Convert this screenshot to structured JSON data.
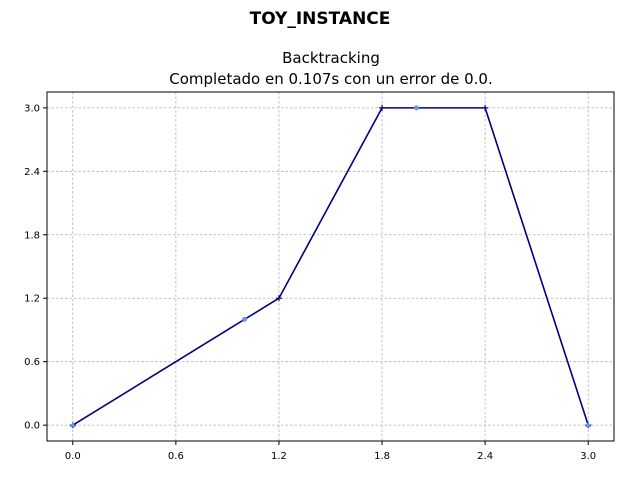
{
  "suptitle": "TOY_INSTANCE",
  "title_line1": "Backtracking",
  "title_line2": "Completado en 0.107s con un error de 0.0.",
  "chart_data": {
    "type": "line",
    "xlim": [
      -0.15,
      3.15
    ],
    "ylim": [
      -0.15,
      3.15
    ],
    "xticks": [
      0.0,
      0.6,
      1.2,
      1.8,
      2.4,
      3.0
    ],
    "yticks": [
      0.0,
      0.6,
      1.2,
      1.8,
      2.4,
      3.0
    ],
    "xtick_labels": [
      "0.0",
      "0.6",
      "1.2",
      "1.8",
      "2.4",
      "3.0"
    ],
    "ytick_labels": [
      "0.0",
      "0.6",
      "1.2",
      "1.8",
      "2.4",
      "3.0"
    ],
    "grid": true,
    "series": [
      {
        "color": "#000080",
        "marker": "plus",
        "x": [
          0.0,
          1.2,
          1.8,
          2.4,
          3.0
        ],
        "y": [
          0.0,
          1.2,
          3.0,
          3.0,
          0.0
        ]
      }
    ],
    "points": [
      {
        "color": "#6495ed",
        "marker": "triangle",
        "x": [
          0.0,
          3.0
        ],
        "y": [
          0.0,
          0.0
        ]
      },
      {
        "color": "#6495ed",
        "marker": "circle",
        "x": [
          1.0,
          2.0
        ],
        "y": [
          1.0,
          3.0
        ]
      }
    ]
  }
}
